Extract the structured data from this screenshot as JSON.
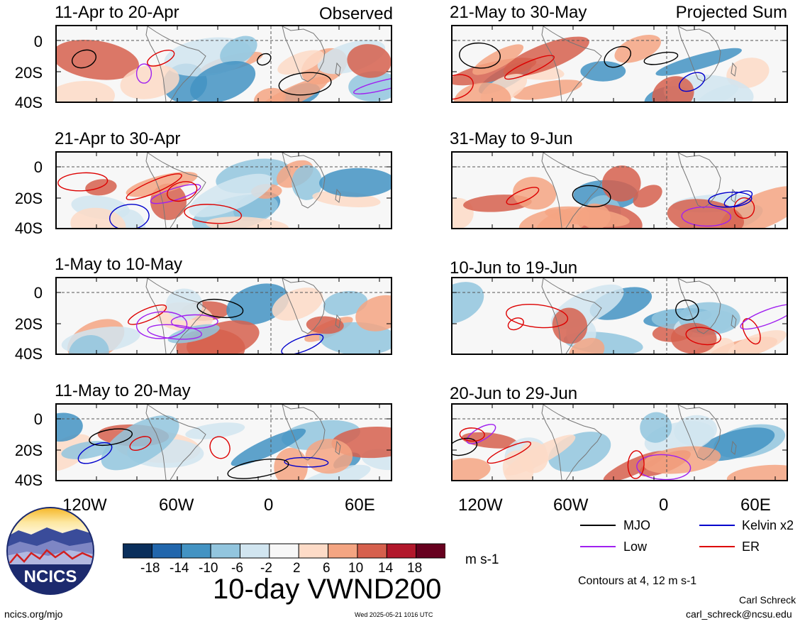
{
  "header": {
    "observed_label": "Observed",
    "projected_label": "Projected Sum"
  },
  "panels": [
    {
      "title": "11-Apr to 20-Apr",
      "column": "observed"
    },
    {
      "title": "21-Apr to 30-Apr",
      "column": "observed"
    },
    {
      "title": "1-May to 10-May",
      "column": "observed"
    },
    {
      "title": "11-May to 20-May",
      "column": "observed"
    },
    {
      "title": "21-May to 30-May",
      "column": "projected"
    },
    {
      "title": "31-May to 9-Jun",
      "column": "projected"
    },
    {
      "title": "10-Jun to 19-Jun",
      "column": "projected"
    },
    {
      "title": "20-Jun to 29-Jun",
      "column": "projected"
    }
  ],
  "axes": {
    "y_ticks": [
      "0",
      "20S",
      "40S"
    ],
    "x_ticks": [
      "120W",
      "60W",
      "0",
      "60E"
    ]
  },
  "colorbar": {
    "tick_labels": [
      "-18",
      "-14",
      "-10",
      "-6",
      "-2",
      "2",
      "6",
      "10",
      "14",
      "18"
    ],
    "colors": [
      "#0a2f5c",
      "#2166ac",
      "#4393c3",
      "#92c5de",
      "#d1e5f0",
      "#f7f7f7",
      "#fddbc7",
      "#f4a582",
      "#d6604d",
      "#b2182b",
      "#67001f"
    ],
    "units": "m s-1"
  },
  "title": "10-day VWND200",
  "legend": {
    "items": [
      {
        "label": "MJO",
        "color": "#000000"
      },
      {
        "label": "Kelvin x2",
        "color": "#0000cc"
      },
      {
        "label": "Low",
        "color": "#a020f0"
      },
      {
        "label": "ER",
        "color": "#dd0000"
      }
    ],
    "contours_note": "Contours at 4, 12 m s-1"
  },
  "footer": {
    "site": "ncics.org/mjo",
    "timestamp": "Wed 2025-05-21 1016 UTC",
    "author": "Carl Schreck",
    "email": "carl_schreck@ncsu.edu",
    "logo_text": "NCICS"
  }
}
